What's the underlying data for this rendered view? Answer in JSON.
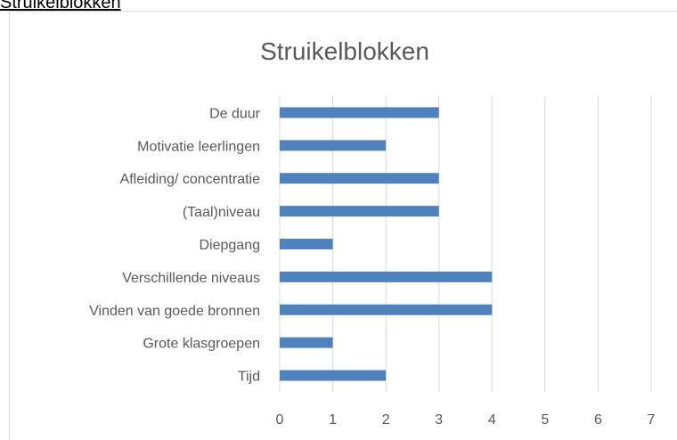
{
  "heading": "Struikelblokken",
  "chart_data": {
    "type": "barh",
    "title": "Struikelblokken",
    "categories": [
      "De duur",
      "Motivatie leerlingen",
      "Afleiding/ concentratie",
      "(Taal)niveau",
      "Diepgang",
      "Verschillende niveaus",
      "Vinden van goede bronnen",
      "Grote klasgroepen",
      "Tijd"
    ],
    "values": [
      3,
      2,
      3,
      3,
      1,
      4,
      4,
      1,
      2
    ],
    "color": "#4f81bd",
    "xlim": [
      0,
      7
    ],
    "xticks": [
      0,
      1,
      2,
      3,
      4,
      5,
      6,
      7
    ],
    "grid": true
  }
}
